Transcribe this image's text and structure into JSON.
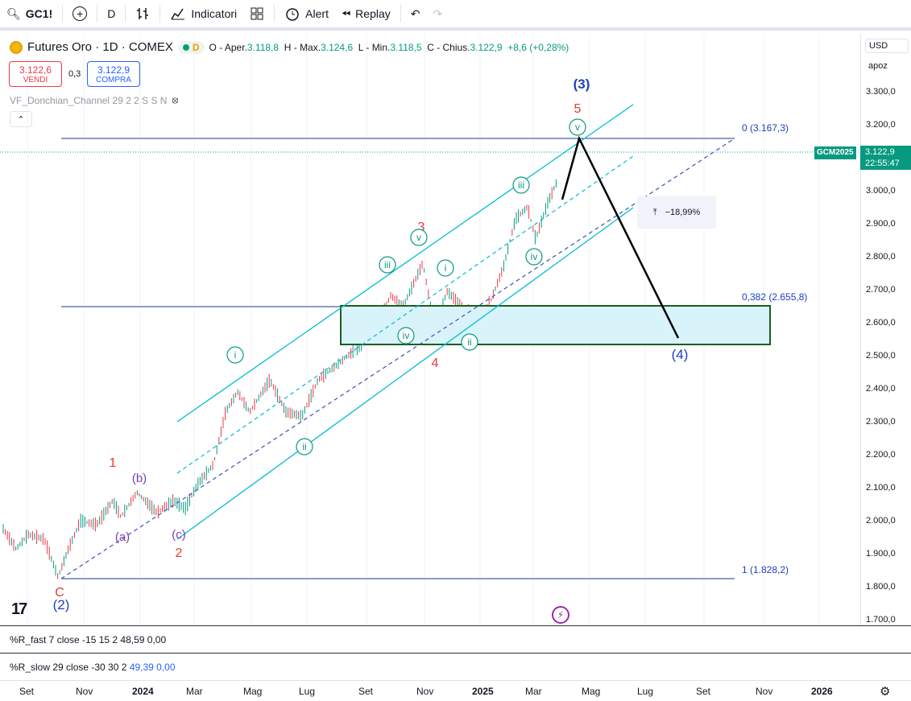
{
  "toolbar": {
    "symbol": "GC1!",
    "interval": "D",
    "indicators_label": "Indicatori",
    "alert_label": "Alert",
    "replay_label": "Replay"
  },
  "legend": {
    "title": "Futures Oro · 1D · COMEX",
    "open_label": "O - Aper.",
    "open": "3.118,8",
    "high_label": "H - Max.",
    "high": "3.124,6",
    "low_label": "L - Min.",
    "low": "3.118,5",
    "close_label": "C - Chius.",
    "close": "3.122,9",
    "change": "+8,6 (+0,28%)",
    "market_badge": "D"
  },
  "trade": {
    "sell_price": "3.122,6",
    "sell_label": "VENDI",
    "spread": "0,3",
    "buy_price": "3.122,9",
    "buy_label": "COMPRA"
  },
  "indicator": "VF_Donchian_Channel 29 2 2 S S N",
  "price_axis": {
    "currency": "USD",
    "mode": "apoz",
    "ticks": [
      "3.300,0",
      "3.200,0",
      "3.100,0",
      "3.000,0",
      "2.900,0",
      "2.800,0",
      "2.700,0",
      "2.600,0",
      "2.500,0",
      "2.400,0",
      "2.300,0",
      "2.200,0",
      "2.100,0",
      "2.000,0",
      "1.900,0",
      "1.800,0",
      "1.700,0"
    ],
    "current_price": "3.122,9",
    "countdown": "22:55:47",
    "contract": "GCM2025"
  },
  "fib": {
    "level0": "0 (3.167,3)",
    "level382": "0,382 (2.655,8)",
    "level1": "1 (1.828,2)"
  },
  "measure": "−18,99%",
  "waves": {
    "w3_big": "(3)",
    "w4_big": "(4)",
    "w2_big": "(2)",
    "w5": "5",
    "w3": "3",
    "w4": "4",
    "w1": "1",
    "w2": "2",
    "wC": "C",
    "a": "(a)",
    "b": "(b)",
    "c": "(c)",
    "ri": "i",
    "rii": "ii",
    "riii": "iii",
    "riv": "iv",
    "rv": "v"
  },
  "panes": {
    "r_fast_label": "%R_fast 7 close -15 15 2",
    "r_fast_v1": "48,59",
    "r_fast_v2": "0,00",
    "r_slow_label": "%R_slow 29 close -30 30 2",
    "r_slow_v1": "49,39",
    "r_slow_v2": "0,00"
  },
  "time_axis": [
    "Set",
    "Nov",
    "2024",
    "Mar",
    "Mag",
    "Lug",
    "Set",
    "Nov",
    "2025",
    "Mar",
    "Mag",
    "Lug",
    "Set",
    "Nov",
    "2026"
  ],
  "colors": {
    "up": "#089981",
    "down": "#f23645",
    "channel": "#00bcd4",
    "wave_red": "#e53935",
    "wave_blue": "#1e3fbf",
    "wave_purple": "#7b3fb0"
  }
}
